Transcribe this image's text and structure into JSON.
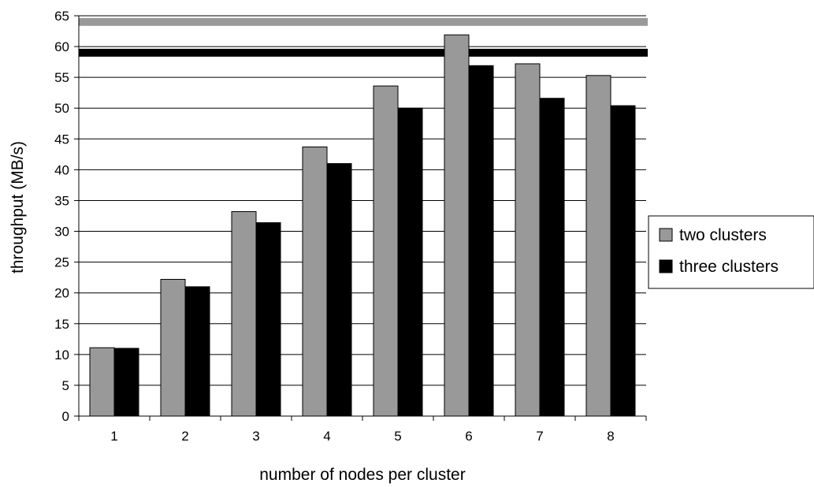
{
  "chart_data": {
    "type": "bar",
    "title": "",
    "xlabel": "number of nodes per cluster",
    "ylabel": "throughput (MB/s)",
    "categories": [
      "1",
      "2",
      "3",
      "4",
      "5",
      "6",
      "7",
      "8"
    ],
    "series": [
      {
        "name": "two clusters",
        "color": "#999999",
        "values": [
          11.1,
          22.2,
          33.2,
          43.7,
          53.6,
          61.9,
          57.2,
          55.3
        ]
      },
      {
        "name": "three clusters",
        "color": "#000000",
        "values": [
          11.0,
          21.0,
          31.4,
          41.0,
          50.0,
          56.9,
          51.6,
          50.4
        ]
      }
    ],
    "reference_lines": [
      {
        "value": 64.0,
        "color": "#999999"
      },
      {
        "value": 59.0,
        "color": "#000000"
      }
    ],
    "ylim": [
      0,
      65
    ],
    "yticks": [
      0,
      5,
      10,
      15,
      20,
      25,
      30,
      35,
      40,
      45,
      50,
      55,
      60,
      65
    ],
    "grid": true,
    "legend_position": "right"
  }
}
